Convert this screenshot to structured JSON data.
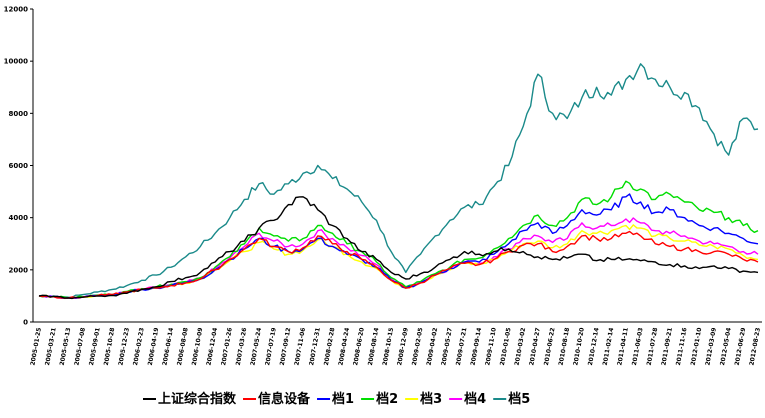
{
  "chart_data": {
    "type": "line",
    "title": "",
    "xlabel": "",
    "ylabel": "",
    "ylim": [
      0,
      12000
    ],
    "yticks": [
      0,
      2000,
      4000,
      6000,
      8000,
      10000,
      12000
    ],
    "grid": false,
    "legend_position": "bottom",
    "x": [
      "2005-01-25",
      "2005-03-21",
      "2005-05-13",
      "2005-07-08",
      "2005-09-01",
      "2005-10-28",
      "2005-12-23",
      "2006-02-23",
      "2006-04-19",
      "2006-06-14",
      "2006-08-08",
      "2006-10-09",
      "2006-12-04",
      "2007-01-26",
      "2007-03-26",
      "2007-05-24",
      "2007-07-19",
      "2007-09-12",
      "2007-11-06",
      "2007-12-31",
      "2008-02-28",
      "2008-04-24",
      "2008-06-20",
      "2008-08-14",
      "2008-10-15",
      "2008-12-09",
      "2009-02-05",
      "2009-04-02",
      "2009-05-27",
      "2009-07-21",
      "2009-09-14",
      "2009-11-10",
      "2010-01-05",
      "2010-03-02",
      "2010-04-27",
      "2010-06-22",
      "2010-08-18",
      "2010-10-20",
      "2010-12-14",
      "2011-02-14",
      "2011-04-11",
      "2011-06-03",
      "2011-07-28",
      "2011-09-21",
      "2011-11-16",
      "2012-01-10",
      "2012-03-09",
      "2012-05-04",
      "2012-06-29",
      "2012-08-23"
    ],
    "series": [
      {
        "name": "上证综合指数",
        "color": "#000000",
        "values": [
          1000,
          980,
          920,
          950,
          1000,
          1020,
          1100,
          1250,
          1350,
          1550,
          1700,
          1900,
          2300,
          2700,
          3100,
          3600,
          3900,
          4500,
          4800,
          4300,
          3700,
          3200,
          2700,
          2400,
          1900,
          1650,
          1850,
          2100,
          2400,
          2700,
          2600,
          2700,
          2800,
          2700,
          2500,
          2400,
          2450,
          2600,
          2350,
          2400,
          2400,
          2350,
          2300,
          2200,
          2150,
          2050,
          2150,
          2050,
          1950,
          1900
        ]
      },
      {
        "name": "信息设备",
        "color": "#ff0000",
        "values": [
          1000,
          970,
          920,
          960,
          1020,
          1050,
          1150,
          1250,
          1300,
          1400,
          1500,
          1650,
          2000,
          2400,
          2800,
          3200,
          2900,
          2700,
          2850,
          3300,
          3000,
          2700,
          2400,
          2100,
          1600,
          1300,
          1500,
          1800,
          2050,
          2250,
          2200,
          2400,
          2700,
          2950,
          3000,
          2700,
          2900,
          3300,
          3200,
          3200,
          3400,
          3300,
          3000,
          2900,
          2800,
          2700,
          2700,
          2600,
          2400,
          2300
        ]
      },
      {
        "name": "档1",
        "color": "#0000ff",
        "values": [
          1000,
          970,
          920,
          960,
          1010,
          1040,
          1150,
          1250,
          1300,
          1400,
          1500,
          1650,
          2000,
          2400,
          2800,
          3200,
          2900,
          2700,
          2800,
          3200,
          2900,
          2600,
          2400,
          2100,
          1600,
          1300,
          1500,
          1800,
          2050,
          2300,
          2300,
          2600,
          3000,
          3500,
          3800,
          3400,
          3700,
          4300,
          4100,
          4300,
          4800,
          4600,
          4200,
          4300,
          4000,
          3700,
          3600,
          3400,
          3200,
          3000
        ]
      },
      {
        "name": "档2",
        "color": "#00dd00",
        "values": [
          1000,
          980,
          930,
          970,
          1030,
          1060,
          1170,
          1280,
          1350,
          1450,
          1550,
          1700,
          2100,
          2500,
          3000,
          3600,
          3300,
          3100,
          3200,
          3700,
          3400,
          3000,
          2700,
          2300,
          1700,
          1350,
          1550,
          1850,
          2100,
          2400,
          2450,
          2800,
          3200,
          3700,
          4100,
          3700,
          4000,
          4700,
          4500,
          4800,
          5400,
          5100,
          4700,
          4900,
          4600,
          4300,
          4200,
          4000,
          3700,
          3500
        ]
      },
      {
        "name": "档3",
        "color": "#ffff00",
        "values": [
          1000,
          970,
          920,
          960,
          1010,
          1040,
          1150,
          1250,
          1300,
          1400,
          1500,
          1650,
          2000,
          2350,
          2700,
          3050,
          2800,
          2600,
          2750,
          3150,
          2900,
          2600,
          2300,
          2050,
          1600,
          1300,
          1500,
          1800,
          2000,
          2250,
          2200,
          2400,
          2700,
          3000,
          3100,
          2850,
          3000,
          3500,
          3400,
          3500,
          3700,
          3600,
          3300,
          3200,
          3100,
          2950,
          2900,
          2800,
          2550,
          2400
        ]
      },
      {
        "name": "档4",
        "color": "#ff00ff",
        "values": [
          1000,
          970,
          920,
          960,
          1010,
          1050,
          1160,
          1260,
          1320,
          1420,
          1520,
          1680,
          2050,
          2450,
          2900,
          3400,
          3100,
          2900,
          3000,
          3500,
          3200,
          2850,
          2550,
          2200,
          1650,
          1320,
          1520,
          1820,
          2050,
          2300,
          2250,
          2500,
          2800,
          3200,
          3300,
          3050,
          3200,
          3800,
          3600,
          3700,
          3950,
          3800,
          3500,
          3400,
          3300,
          3100,
          3000,
          2900,
          2700,
          2600
        ]
      },
      {
        "name": "档5",
        "color": "#1a8a8a",
        "values": [
          1000,
          1000,
          950,
          1050,
          1150,
          1250,
          1400,
          1600,
          1800,
          2100,
          2500,
          2900,
          3400,
          4000,
          4700,
          5300,
          4900,
          5300,
          5700,
          6000,
          5500,
          5100,
          4600,
          3900,
          2700,
          1900,
          2600,
          3300,
          3900,
          4400,
          4500,
          5200,
          6000,
          7500,
          9500,
          8000,
          7800,
          8600,
          9000,
          8700,
          9300,
          9900,
          9300,
          9000,
          8800,
          8200,
          7200,
          6400,
          7800,
          7400
        ]
      }
    ]
  }
}
